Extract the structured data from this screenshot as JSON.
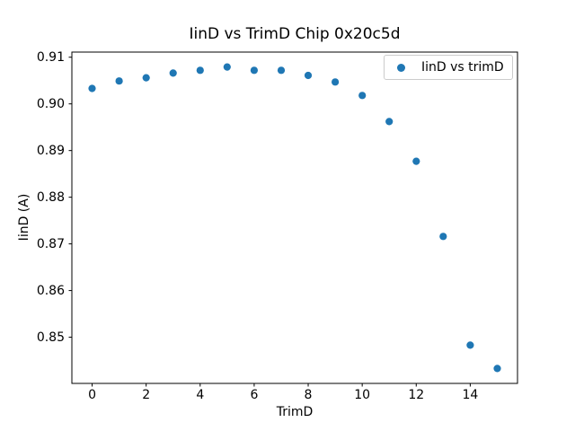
{
  "chart_data": {
    "type": "scatter",
    "title": "IinD vs TrimD Chip 0x20c5d",
    "xlabel": "TrimD",
    "ylabel": "IinD (A)",
    "legend": [
      "IinD vs trimD"
    ],
    "legend_position": "upper right",
    "grid": false,
    "marker_color": "#1f77b4",
    "axis_color": "#000000",
    "legend_border_color": "#cccccc",
    "x": [
      0,
      1,
      2,
      3,
      4,
      5,
      6,
      7,
      8,
      9,
      10,
      11,
      12,
      13,
      14,
      15
    ],
    "y": [
      0.9033,
      0.9049,
      0.9056,
      0.9066,
      0.9072,
      0.9079,
      0.9072,
      0.9072,
      0.9061,
      0.9047,
      0.9018,
      0.8962,
      0.8877,
      0.8716,
      0.8483,
      0.8433
    ],
    "xlim": [
      -0.75,
      15.75
    ],
    "ylim": [
      0.8401,
      0.9111
    ],
    "xticks": [
      0,
      2,
      4,
      6,
      8,
      10,
      12,
      14
    ],
    "xtick_labels": [
      "0",
      "2",
      "4",
      "6",
      "8",
      "10",
      "12",
      "14"
    ],
    "yticks": [
      0.85,
      0.86,
      0.87,
      0.88,
      0.89,
      0.9,
      0.91
    ],
    "ytick_labels": [
      "0.85",
      "0.86",
      "0.87",
      "0.88",
      "0.89",
      "0.90",
      "0.91"
    ]
  }
}
